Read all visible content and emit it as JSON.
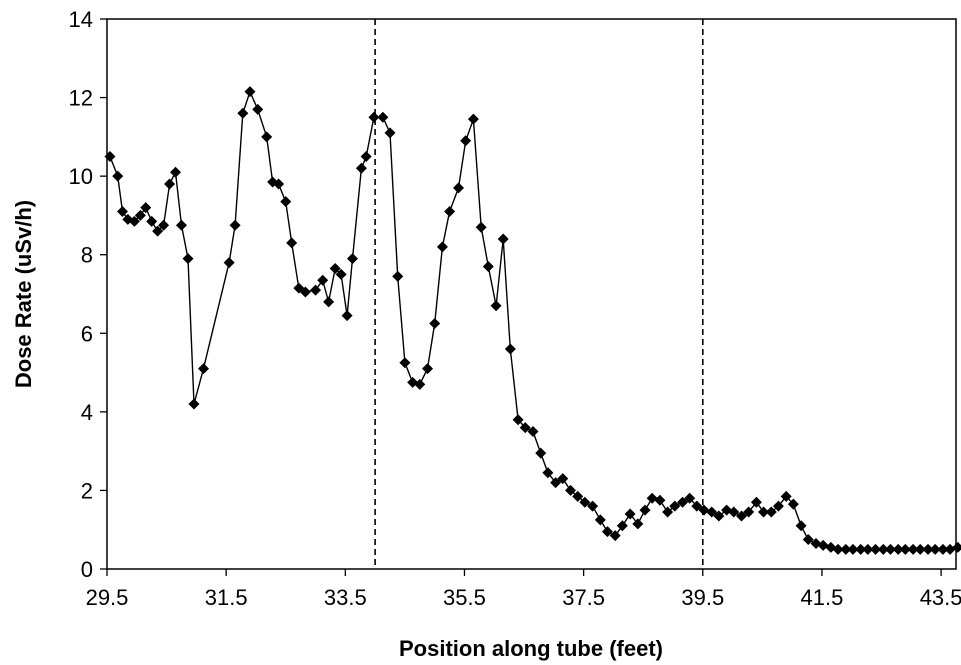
{
  "chart_data": {
    "type": "line",
    "title": "",
    "xlabel": "Position along tube (feet)",
    "ylabel": "Dose Rate (uSv/h)",
    "xlim": [
      29.5,
      43.75
    ],
    "ylim": [
      0,
      14
    ],
    "x_ticks": [
      29.5,
      31.5,
      33.5,
      35.5,
      37.5,
      39.5,
      41.5,
      43.5
    ],
    "x_tick_labels": [
      "29.5",
      "31.5",
      "33.5",
      "35.5",
      "37.5",
      "39.5",
      "41.5",
      "43.5"
    ],
    "y_ticks": [
      0,
      2,
      4,
      6,
      8,
      10,
      12,
      14
    ],
    "y_tick_labels": [
      "0",
      "2",
      "4",
      "6",
      "8",
      "10",
      "12",
      "14"
    ],
    "grid": false,
    "legend": "none",
    "reference_lines": [
      34.0,
      39.5
    ],
    "series": [
      {
        "color": "#000000",
        "marker": "diamond",
        "x": [
          29.55,
          29.68,
          29.76,
          29.85,
          29.96,
          30.06,
          30.15,
          30.25,
          30.35,
          30.45,
          30.55,
          30.65,
          30.75,
          30.86,
          30.96,
          31.12,
          31.55,
          31.65,
          31.78,
          31.9,
          32.03,
          32.18,
          32.28,
          32.38,
          32.5,
          32.6,
          32.72,
          32.83,
          33.0,
          33.12,
          33.22,
          33.33,
          33.43,
          33.53,
          33.62,
          33.77,
          33.85,
          33.98,
          34.13,
          34.25,
          34.38,
          34.5,
          34.63,
          34.75,
          34.88,
          35.0,
          35.13,
          35.25,
          35.4,
          35.52,
          35.65,
          35.78,
          35.9,
          36.03,
          36.15,
          36.27,
          36.4,
          36.52,
          36.65,
          36.78,
          36.9,
          37.03,
          37.15,
          37.28,
          37.4,
          37.52,
          37.65,
          37.78,
          37.9,
          38.03,
          38.15,
          38.28,
          38.41,
          38.53,
          38.65,
          38.78,
          38.91,
          39.03,
          39.16,
          39.28,
          39.4,
          39.52,
          39.65,
          39.77,
          39.9,
          40.02,
          40.15,
          40.27,
          40.4,
          40.52,
          40.65,
          40.77,
          40.9,
          41.02,
          41.15,
          41.27,
          41.4,
          41.52,
          41.65,
          41.77,
          41.9,
          42.02,
          42.15,
          42.27,
          42.4,
          42.53,
          42.65,
          42.78,
          42.9,
          43.03,
          43.15,
          43.28,
          43.4,
          43.53,
          43.65,
          43.78
        ],
        "y": [
          10.5,
          10.0,
          9.1,
          8.9,
          8.85,
          9.0,
          9.2,
          8.85,
          8.6,
          8.75,
          9.8,
          10.1,
          8.75,
          7.9,
          4.2,
          5.1,
          7.8,
          8.75,
          11.6,
          12.15,
          11.7,
          11.0,
          9.85,
          9.8,
          9.35,
          8.3,
          7.15,
          7.05,
          7.1,
          7.35,
          6.8,
          7.65,
          7.5,
          6.45,
          7.9,
          10.2,
          10.5,
          11.5,
          11.5,
          11.1,
          7.45,
          5.25,
          4.75,
          4.7,
          5.1,
          6.25,
          8.2,
          9.1,
          9.7,
          10.9,
          11.45,
          8.7,
          7.7,
          6.7,
          8.4,
          5.6,
          3.8,
          3.6,
          3.5,
          2.95,
          2.45,
          2.2,
          2.3,
          2.0,
          1.85,
          1.7,
          1.6,
          1.25,
          0.95,
          0.85,
          1.1,
          1.4,
          1.15,
          1.5,
          1.8,
          1.75,
          1.45,
          1.6,
          1.7,
          1.8,
          1.6,
          1.5,
          1.45,
          1.35,
          1.5,
          1.45,
          1.35,
          1.45,
          1.7,
          1.45,
          1.45,
          1.6,
          1.85,
          1.65,
          1.1,
          0.75,
          0.65,
          0.6,
          0.55,
          0.5,
          0.5,
          0.5,
          0.5,
          0.5,
          0.5,
          0.5,
          0.5,
          0.5,
          0.5,
          0.5,
          0.5,
          0.5,
          0.5,
          0.5,
          0.5,
          0.55
        ]
      }
    ]
  }
}
